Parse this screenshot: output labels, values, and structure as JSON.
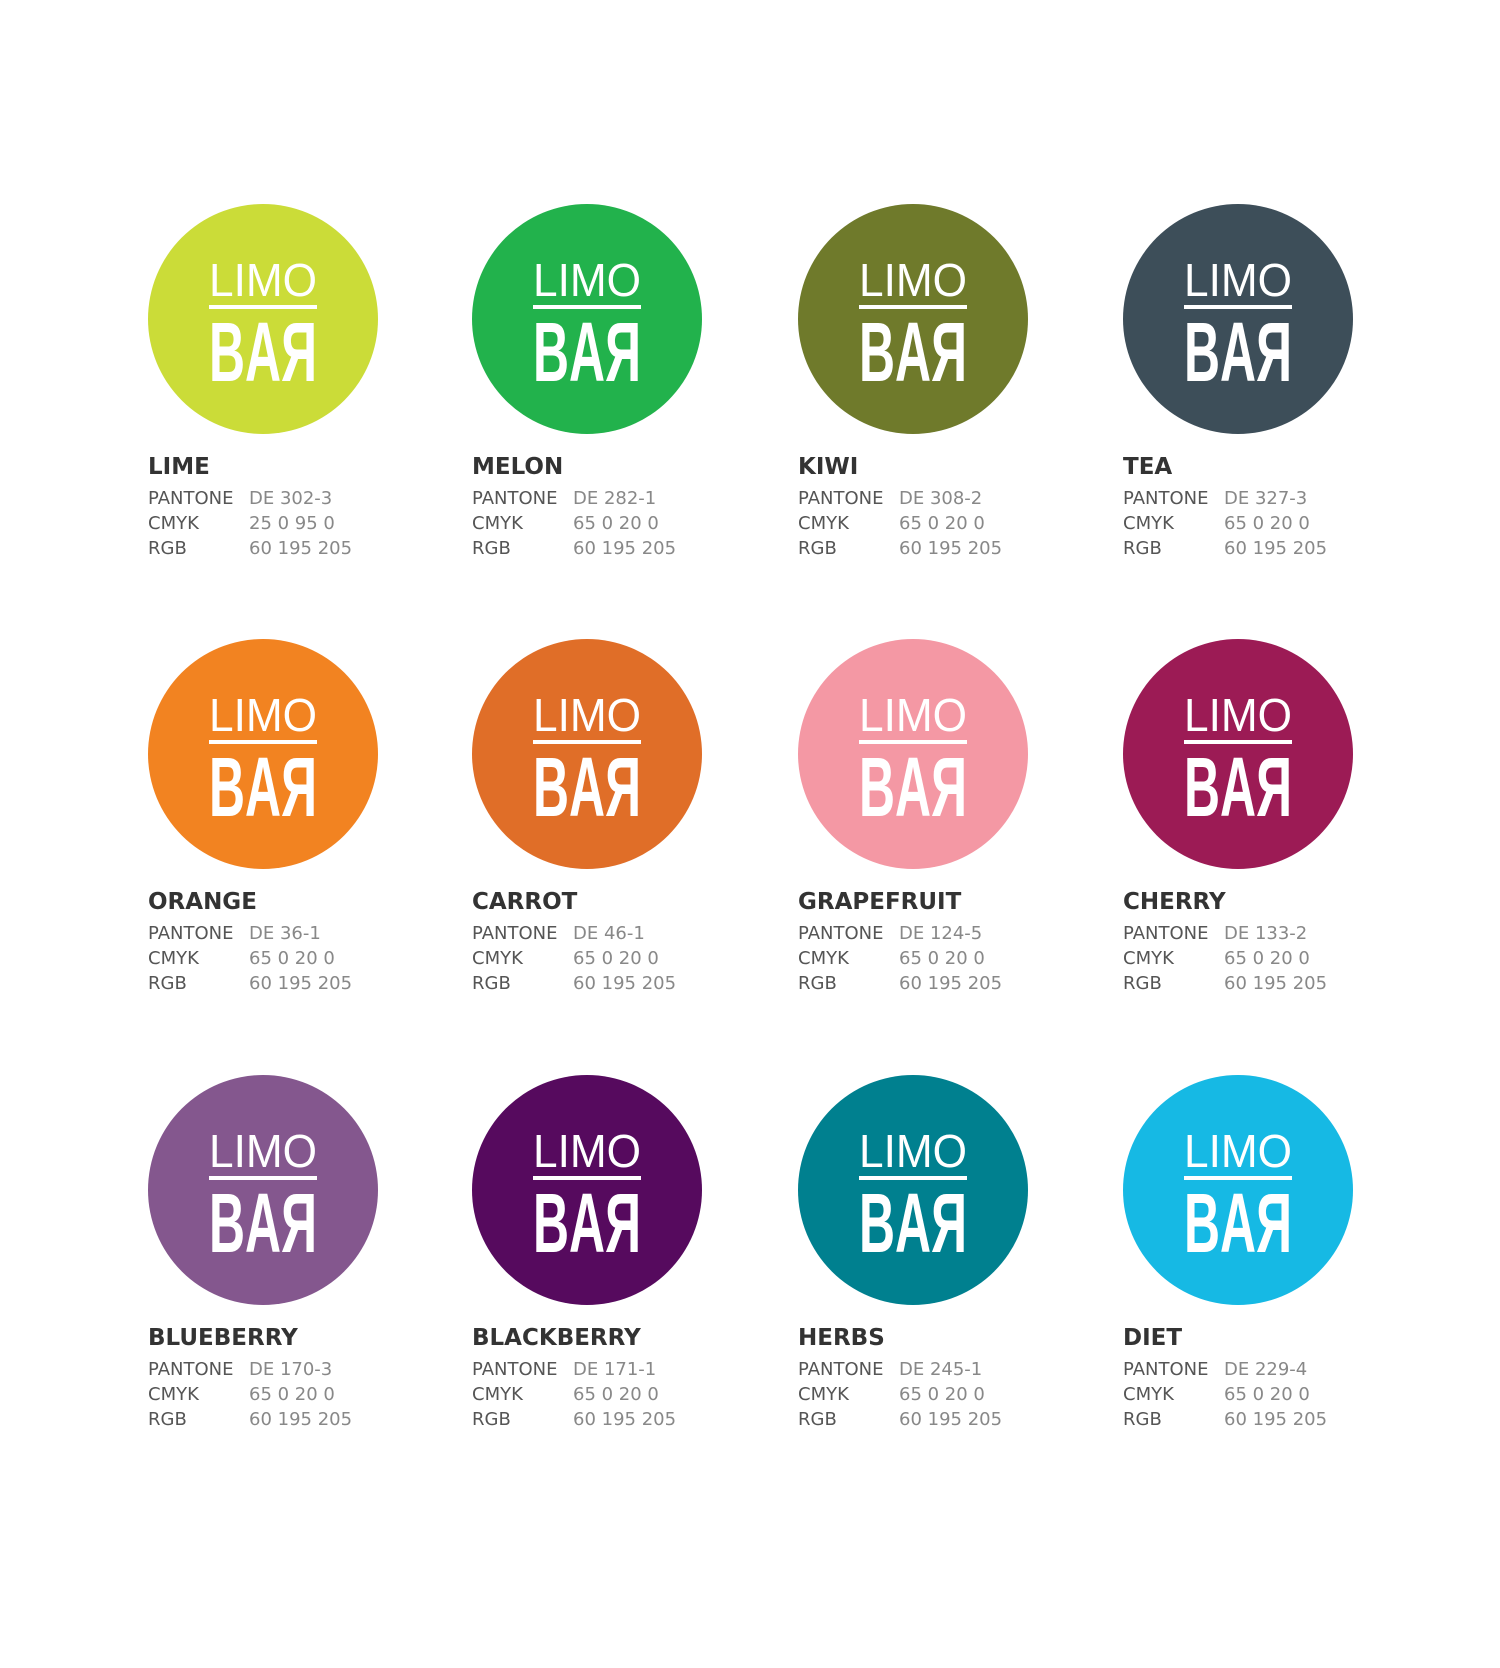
{
  "logo": {
    "top": "LIMO",
    "bottom": "BAЯ"
  },
  "row_labels": [
    "PANTONE",
    "CMYK",
    "RGB"
  ],
  "swatches": [
    {
      "name": "LIME",
      "color": "#cbdc38",
      "pantone": "DE 302-3",
      "cmyk": "25 0 95 0",
      "rgb": "60 195 205"
    },
    {
      "name": "MELON",
      "color": "#22b24c",
      "pantone": "DE 282-1",
      "cmyk": "65 0 20 0",
      "rgb": "60 195 205"
    },
    {
      "name": "KIWI",
      "color": "#6f7a2b",
      "pantone": "DE 308-2",
      "cmyk": "65 0 20 0",
      "rgb": "60 195 205"
    },
    {
      "name": "TEA",
      "color": "#3d4e59",
      "pantone": "DE 327-3",
      "cmyk": "65 0 20 0",
      "rgb": "60 195 205"
    },
    {
      "name": "ORANGE",
      "color": "#f28321",
      "pantone": "DE 36-1",
      "cmyk": "65 0 20 0",
      "rgb": "60 195 205"
    },
    {
      "name": "CARROT",
      "color": "#e06e28",
      "pantone": "DE 46-1",
      "cmyk": "65 0 20 0",
      "rgb": "60 195 205"
    },
    {
      "name": "GRAPEFRUIT",
      "color": "#f498a4",
      "pantone": "DE 124-5",
      "cmyk": "65 0 20 0",
      "rgb": "60 195 205"
    },
    {
      "name": "CHERRY",
      "color": "#9c1b55",
      "pantone": "DE 133-2",
      "cmyk": "65 0 20 0",
      "rgb": "60 195 205"
    },
    {
      "name": "BLUEBERRY",
      "color": "#84578e",
      "pantone": "DE 170-3",
      "cmyk": "65 0 20 0",
      "rgb": "60 195 205"
    },
    {
      "name": "BLACKBERRY",
      "color": "#560a5e",
      "pantone": "DE 171-1",
      "cmyk": "65 0 20 0",
      "rgb": "60 195 205"
    },
    {
      "name": "HERBS",
      "color": "#00808f",
      "pantone": "DE 245-1",
      "cmyk": "65 0 20 0",
      "rgb": "60 195 205"
    },
    {
      "name": "DIET",
      "color": "#16b9e4",
      "pantone": "DE 229-4",
      "cmyk": "65 0 20 0",
      "rgb": "60 195 205"
    }
  ]
}
